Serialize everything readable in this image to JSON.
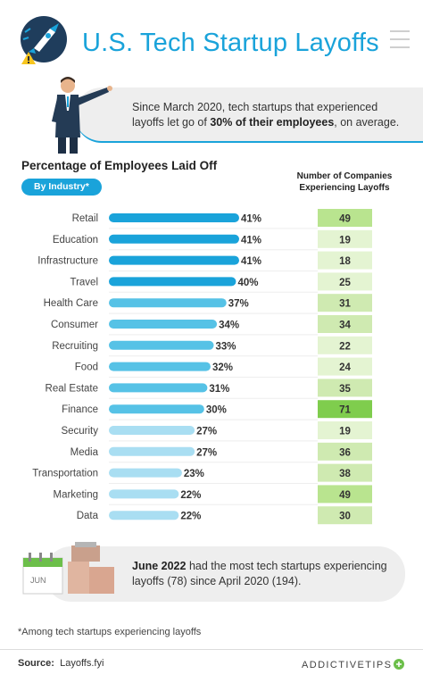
{
  "title": "U.S. Tech Startup Layoffs",
  "callout_top": {
    "text_before": "Since March 2020, tech startups that experienced layoffs let go of ",
    "highlight": "30% of their employees",
    "text_after": ", on average."
  },
  "chart_data": {
    "type": "bar",
    "title": "Percentage of Employees Laid Off",
    "subtitle": "By Industry*",
    "table_title": "Number of Companies Experiencing Layoffs",
    "categories": [
      "Retail",
      "Education",
      "Infrastructure",
      "Travel",
      "Health Care",
      "Consumer",
      "Recruiting",
      "Food",
      "Real Estate",
      "Finance",
      "Security",
      "Media",
      "Transportation",
      "Marketing",
      "Data"
    ],
    "values": [
      41,
      41,
      41,
      40,
      37,
      34,
      33,
      32,
      31,
      30,
      27,
      27,
      23,
      22,
      22
    ],
    "value_labels": [
      "41%",
      "41%",
      "41%",
      "40%",
      "37%",
      "34%",
      "33%",
      "32%",
      "31%",
      "30%",
      "27%",
      "27%",
      "23%",
      "22%",
      "22%"
    ],
    "companies": [
      49,
      19,
      18,
      25,
      31,
      34,
      22,
      24,
      35,
      71,
      19,
      36,
      38,
      49,
      30
    ],
    "xlim": [
      0,
      41
    ],
    "grid": false,
    "colors": {
      "bar_dark": "#1aa3da",
      "bar_mid": "#56c2e6",
      "bar_light": "#a9def2",
      "cell_green_high": "#7fcd4d",
      "cell_green_mid": "#b9e48f",
      "cell_green_low": "#e4f4d2"
    }
  },
  "calendar_label": "JUN",
  "callout_bottom": {
    "highlight": "June 2022",
    "text": " had the most tech startups experiencing layoffs (78) since April 2020 (194)."
  },
  "footnote": "*Among tech startups experiencing layoffs",
  "source": {
    "label": "Source:",
    "value": "Layoffs.fyi"
  },
  "brand": "ADDICTIVETIPS"
}
